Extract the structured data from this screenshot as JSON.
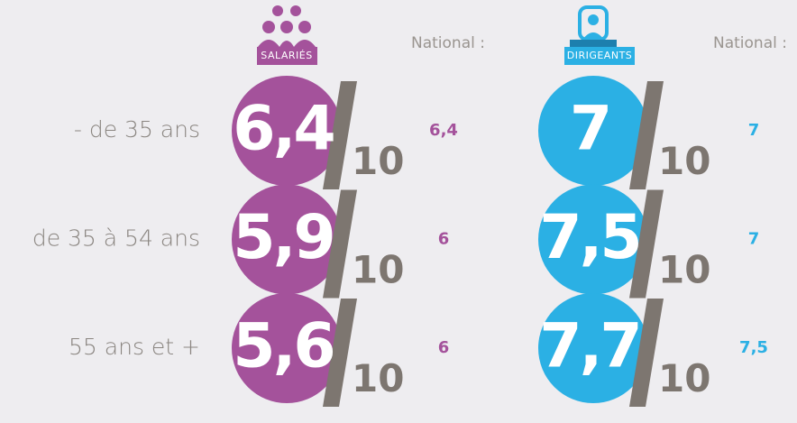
{
  "headers": {
    "salaries": "SALARIÉS",
    "dirigeants": "DIRIGEANTS",
    "national": "National :"
  },
  "scale_max": "10",
  "rows": [
    {
      "label": "- de 35 ans",
      "salaries": "6,4",
      "salaries_national": "6,4",
      "dirigeants": "7",
      "dirigeants_national": "7"
    },
    {
      "label": "de 35 à 54 ans",
      "salaries": "5,9",
      "salaries_national": "6",
      "dirigeants": "7,5",
      "dirigeants_national": "7"
    },
    {
      "label": "55 ans et +",
      "salaries": "5,6",
      "salaries_national": "6",
      "dirigeants": "7,7",
      "dirigeants_national": "7,5"
    }
  ]
}
